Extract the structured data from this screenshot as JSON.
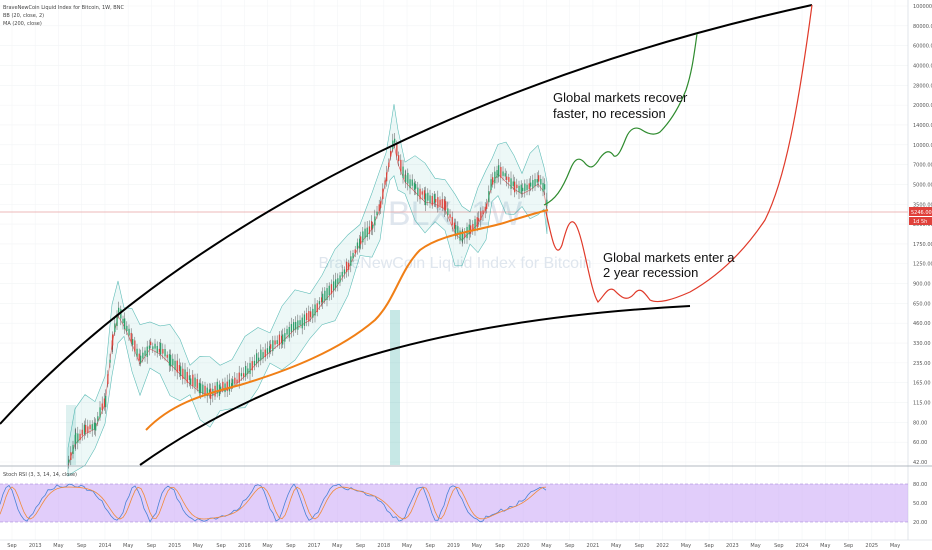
{
  "header": {
    "title": "BraveNewCoin Liquid Index for Bitcoin, 1W, BNC",
    "indicator1": "BB (20, close, 2)",
    "indicator2": "MA (200, close)"
  },
  "watermark": {
    "symbol": "BLX, 1W",
    "name": "BraveNewCoin Liquid Index for Bitcoin"
  },
  "annotations": {
    "bull": [
      "Global markets recover",
      "faster, no recession"
    ],
    "bear": [
      "Global markets enter a",
      "2 year recession"
    ]
  },
  "price_tags": {
    "current": "5246.00",
    "sub": "1d 5h"
  },
  "stoch_label": "Stoch RSI (3, 3, 14, 14, close)",
  "chart_data": {
    "type": "line",
    "price_axis_ticks": [
      "100000.00",
      "80000.00",
      "60000.00",
      "40000.00",
      "28000.00",
      "20000.00",
      "14000.00",
      "10000.00",
      "7000.00",
      "5000.00",
      "3500.00",
      "2500.00",
      "1750.00",
      "1250.00",
      "900.00",
      "650.00",
      "460.00",
      "330.00",
      "235.00",
      "165.00",
      "115.00",
      "80.00",
      "60.00",
      "42.00"
    ],
    "stoch_ticks": [
      "80.00",
      "50.00",
      "20.00"
    ],
    "time_ticks": [
      "Sep",
      "2013",
      "May",
      "Sep",
      "2014",
      "May",
      "Sep",
      "2015",
      "May",
      "Sep",
      "2016",
      "May",
      "Sep",
      "2017",
      "May",
      "Sep",
      "2018",
      "May",
      "Sep",
      "2019",
      "May",
      "Sep",
      "2020",
      "May",
      "Sep",
      "2021",
      "May",
      "Sep",
      "2022",
      "May",
      "Sep",
      "2023",
      "May",
      "Sep",
      "2024",
      "May",
      "Sep",
      "2025",
      "May"
    ],
    "series": [
      {
        "name": "Global markets recover faster, no recession",
        "color": "#2e8b2e"
      },
      {
        "name": "Global markets enter a 2 year recession",
        "color": "#e03a2a"
      }
    ],
    "colors": {
      "upper_arc": "#000000",
      "lower_arc": "#000000",
      "ma200": "#f07f16",
      "bollinger": "#1fa39b",
      "price_line": "#e05050",
      "stoch_band": "#c9a4f5",
      "stoch_k": "#4a82d6",
      "stoch_d": "#f08a3a"
    }
  }
}
